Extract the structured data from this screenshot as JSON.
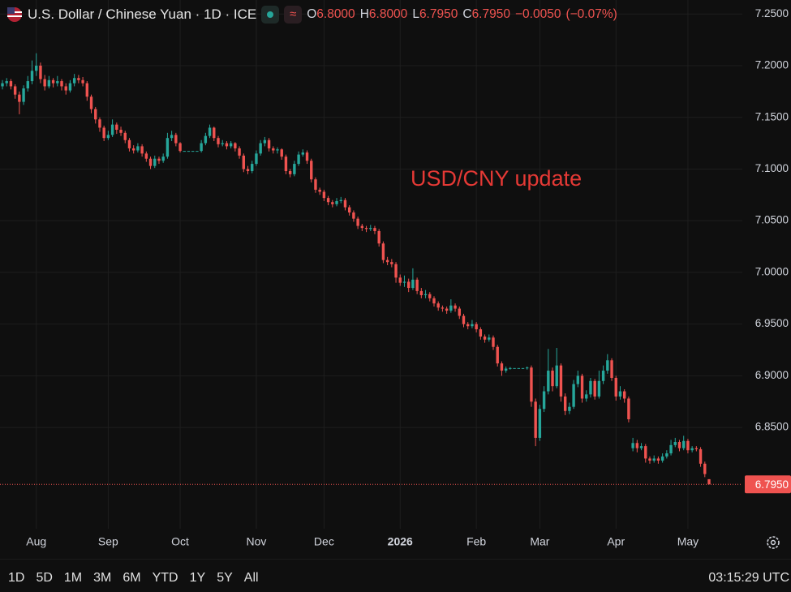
{
  "header": {
    "title": "U.S. Dollar / Chinese Yuan · 1D · ICE",
    "ohlc": [
      {
        "name": "O",
        "value": 6.8,
        "label": "6.8000"
      },
      {
        "name": "H",
        "value": 6.8,
        "label": "6.8000"
      },
      {
        "name": "L",
        "value": 6.795,
        "label": "6.7950"
      },
      {
        "name": "C",
        "value": 6.795,
        "label": "6.7950"
      }
    ],
    "change": {
      "value": -0.005,
      "label": "−0.0050"
    },
    "change_pct": {
      "value": -0.07,
      "label": "(−0.07%)"
    }
  },
  "chart_data": {
    "type": "candlestick",
    "annotation": "USD/CNY update",
    "up_color": "#26a69a",
    "down_color": "#ef5350",
    "grid": true,
    "ylim": [
      6.74,
      7.2635
    ],
    "yticks": [
      {
        "value": 7.25,
        "label": "7.2500"
      },
      {
        "value": 7.2,
        "label": "7.2000"
      },
      {
        "value": 7.15,
        "label": "7.1500"
      },
      {
        "value": 7.1,
        "label": "7.1000"
      },
      {
        "value": 7.05,
        "label": "7.0500"
      },
      {
        "value": 7.0,
        "label": "7.0000"
      },
      {
        "value": 6.95,
        "label": "6.9500"
      },
      {
        "value": 6.9,
        "label": "6.9000"
      },
      {
        "value": 6.85,
        "label": "6.8500"
      }
    ],
    "xticks": [
      {
        "value": 8,
        "label": "Aug"
      },
      {
        "value": 25,
        "label": "Sep"
      },
      {
        "value": 42,
        "label": "Oct"
      },
      {
        "value": 60,
        "label": "Nov"
      },
      {
        "value": 76,
        "label": "Dec"
      },
      {
        "value": 94,
        "label": "2026",
        "bold": true
      },
      {
        "value": 112,
        "label": "Feb"
      },
      {
        "value": 127,
        "label": "Mar"
      },
      {
        "value": 145,
        "label": "Apr"
      },
      {
        "value": 162,
        "label": "May"
      }
    ],
    "last_price": {
      "value": 6.795,
      "label": "6.7950"
    },
    "candles": [
      [
        7.18,
        7.186,
        7.177,
        7.183
      ],
      [
        7.183,
        7.188,
        7.18,
        7.185
      ],
      [
        7.185,
        7.187,
        7.177,
        7.18
      ],
      [
        7.18,
        7.182,
        7.168,
        7.172
      ],
      [
        7.172,
        7.175,
        7.153,
        7.165
      ],
      [
        7.165,
        7.181,
        7.162,
        7.178
      ],
      [
        7.178,
        7.19,
        7.175,
        7.185
      ],
      [
        7.185,
        7.205,
        7.182,
        7.195
      ],
      [
        7.195,
        7.212,
        7.19,
        7.2
      ],
      [
        7.2,
        7.203,
        7.183,
        7.187
      ],
      [
        7.187,
        7.191,
        7.176,
        7.18
      ],
      [
        7.18,
        7.19,
        7.178,
        7.186
      ],
      [
        7.186,
        7.188,
        7.179,
        7.183
      ],
      [
        7.183,
        7.19,
        7.18,
        7.185
      ],
      [
        7.185,
        7.187,
        7.176,
        7.18
      ],
      [
        7.18,
        7.183,
        7.172,
        7.176
      ],
      [
        7.176,
        7.186,
        7.174,
        7.183
      ],
      [
        7.183,
        7.192,
        7.18,
        7.188
      ],
      [
        7.188,
        7.191,
        7.183,
        7.186
      ],
      [
        7.186,
        7.189,
        7.18,
        7.183
      ],
      [
        7.183,
        7.185,
        7.166,
        7.17
      ],
      [
        7.17,
        7.172,
        7.154,
        7.158
      ],
      [
        7.158,
        7.16,
        7.144,
        7.148
      ],
      [
        7.148,
        7.15,
        7.136,
        7.14
      ],
      [
        7.14,
        7.142,
        7.127,
        7.13
      ],
      [
        7.13,
        7.137,
        7.128,
        7.133
      ],
      [
        7.133,
        7.148,
        7.131,
        7.143
      ],
      [
        7.143,
        7.145,
        7.134,
        7.138
      ],
      [
        7.138,
        7.141,
        7.132,
        7.135
      ],
      [
        7.135,
        7.137,
        7.125,
        7.128
      ],
      [
        7.128,
        7.13,
        7.117,
        7.12
      ],
      [
        7.12,
        7.123,
        7.115,
        7.118
      ],
      [
        7.118,
        7.125,
        7.116,
        7.122
      ],
      [
        7.122,
        7.124,
        7.112,
        7.115
      ],
      [
        7.115,
        7.117,
        7.107,
        7.11
      ],
      [
        7.11,
        7.112,
        7.1,
        7.103
      ],
      [
        7.103,
        7.113,
        7.101,
        7.11
      ],
      [
        7.11,
        7.112,
        7.105,
        7.108
      ],
      [
        7.108,
        7.115,
        7.106,
        7.112
      ],
      [
        7.112,
        7.135,
        7.11,
        7.13
      ],
      [
        7.13,
        7.137,
        7.127,
        7.133
      ],
      [
        7.133,
        7.135,
        7.122,
        7.125
      ],
      [
        7.125,
        7.126,
        7.116,
        7.1175
      ],
      [
        7.1175,
        7.1175,
        7.1175,
        7.1175
      ],
      [
        7.1175,
        7.1175,
        7.1175,
        7.1175
      ],
      [
        7.1175,
        7.1175,
        7.1175,
        7.1175
      ],
      [
        7.1175,
        7.1175,
        7.1175,
        7.1175
      ],
      [
        7.1175,
        7.128,
        7.116,
        7.125
      ],
      [
        7.125,
        7.135,
        7.123,
        7.132
      ],
      [
        7.132,
        7.143,
        7.13,
        7.14
      ],
      [
        7.14,
        7.141,
        7.127,
        7.13
      ],
      [
        7.13,
        7.132,
        7.121,
        7.124
      ],
      [
        7.124,
        7.128,
        7.122,
        7.125
      ],
      [
        7.125,
        7.127,
        7.119,
        7.122
      ],
      [
        7.122,
        7.127,
        7.12,
        7.125
      ],
      [
        7.125,
        7.126,
        7.117,
        7.12
      ],
      [
        7.12,
        7.122,
        7.11,
        7.113
      ],
      [
        7.113,
        7.115,
        7.097,
        7.1
      ],
      [
        7.1,
        7.103,
        7.095,
        7.098
      ],
      [
        7.098,
        7.108,
        7.096,
        7.105
      ],
      [
        7.105,
        7.118,
        7.103,
        7.115
      ],
      [
        7.115,
        7.128,
        7.113,
        7.125
      ],
      [
        7.125,
        7.131,
        7.122,
        7.128
      ],
      [
        7.128,
        7.13,
        7.117,
        7.12
      ],
      [
        7.12,
        7.122,
        7.115,
        7.118
      ],
      [
        7.118,
        7.121,
        7.115,
        7.119
      ],
      [
        7.119,
        7.12,
        7.109,
        7.112
      ],
      [
        7.112,
        7.114,
        7.095,
        7.098
      ],
      [
        7.098,
        7.1,
        7.092,
        7.095
      ],
      [
        7.095,
        7.108,
        7.093,
        7.105
      ],
      [
        7.105,
        7.117,
        7.103,
        7.114
      ],
      [
        7.114,
        7.119,
        7.112,
        7.116
      ],
      [
        7.116,
        7.118,
        7.105,
        7.108
      ],
      [
        7.108,
        7.11,
        7.087,
        7.09
      ],
      [
        7.09,
        7.092,
        7.077,
        7.08
      ],
      [
        7.08,
        7.082,
        7.075,
        7.078
      ],
      [
        7.078,
        7.08,
        7.069,
        7.072
      ],
      [
        7.072,
        7.074,
        7.065,
        7.068
      ],
      [
        7.068,
        7.07,
        7.063,
        7.066
      ],
      [
        7.066,
        7.072,
        7.064,
        7.069
      ],
      [
        7.069,
        7.073,
        7.067,
        7.07
      ],
      [
        7.07,
        7.072,
        7.06,
        7.063
      ],
      [
        7.063,
        7.065,
        7.055,
        7.058
      ],
      [
        7.058,
        7.06,
        7.049,
        7.052
      ],
      [
        7.052,
        7.054,
        7.042,
        7.045
      ],
      [
        7.045,
        7.047,
        7.04,
        7.043
      ],
      [
        7.043,
        7.045,
        7.039,
        7.042
      ],
      [
        7.042,
        7.046,
        7.04,
        7.043
      ],
      [
        7.043,
        7.045,
        7.037,
        7.04
      ],
      [
        7.04,
        7.042,
        7.025,
        7.028
      ],
      [
        7.028,
        7.03,
        7.009,
        7.012
      ],
      [
        7.012,
        7.015,
        7.007,
        7.01
      ],
      [
        7.01,
        7.013,
        7.005,
        7.008
      ],
      [
        7.008,
        7.01,
        6.99,
        6.995
      ],
      [
        6.995,
        6.998,
        6.987,
        6.99
      ],
      [
        6.99,
        6.997,
        6.986,
        6.991
      ],
      [
        6.991,
        6.994,
        6.981,
        6.985
      ],
      [
        6.985,
        7.004,
        6.983,
        6.993
      ],
      [
        6.993,
        6.995,
        6.979,
        6.982
      ],
      [
        6.982,
        6.985,
        6.975,
        6.978
      ],
      [
        6.978,
        6.983,
        6.975,
        6.979
      ],
      [
        6.979,
        6.981,
        6.972,
        6.975
      ],
      [
        6.975,
        6.977,
        6.967,
        6.97
      ],
      [
        6.97,
        6.972,
        6.963,
        6.966
      ],
      [
        6.966,
        6.968,
        6.962,
        6.965
      ],
      [
        6.965,
        6.967,
        6.96,
        6.963
      ],
      [
        6.963,
        6.974,
        6.961,
        6.968
      ],
      [
        6.968,
        6.97,
        6.962,
        6.965
      ],
      [
        6.965,
        6.967,
        6.955,
        6.958
      ],
      [
        6.958,
        6.96,
        6.947,
        6.95
      ],
      [
        6.95,
        6.952,
        6.945,
        6.948
      ],
      [
        6.948,
        6.954,
        6.946,
        6.95
      ],
      [
        6.95,
        6.952,
        6.942,
        6.945
      ],
      [
        6.945,
        6.947,
        6.935,
        6.938
      ],
      [
        6.938,
        6.94,
        6.932,
        6.935
      ],
      [
        6.935,
        6.94,
        6.933,
        6.937
      ],
      [
        6.937,
        6.939,
        6.925,
        6.928
      ],
      [
        6.928,
        6.93,
        6.909,
        6.912
      ],
      [
        6.912,
        6.914,
        6.9,
        6.905
      ],
      [
        6.905,
        6.909,
        6.903,
        6.907
      ],
      [
        6.907,
        6.9085,
        6.906,
        6.9075
      ],
      [
        6.9075,
        6.9075,
        6.9075,
        6.9075
      ],
      [
        6.9075,
        6.9075,
        6.9075,
        6.9075
      ],
      [
        6.9075,
        6.9075,
        6.9075,
        6.9075
      ],
      [
        6.9075,
        6.909,
        6.906,
        6.908
      ],
      [
        6.908,
        6.91,
        6.87,
        6.875
      ],
      [
        6.875,
        6.878,
        6.832,
        6.84
      ],
      [
        6.84,
        6.872,
        6.837,
        6.868
      ],
      [
        6.868,
        6.89,
        6.865,
        6.885
      ],
      [
        6.885,
        6.926,
        6.882,
        6.905
      ],
      [
        6.905,
        6.908,
        6.885,
        6.89
      ],
      [
        6.89,
        6.927,
        6.888,
        6.91
      ],
      [
        6.91,
        6.912,
        6.875,
        6.88
      ],
      [
        6.88,
        6.883,
        6.862,
        6.866
      ],
      [
        6.866,
        6.874,
        6.863,
        6.87
      ],
      [
        6.87,
        6.896,
        6.868,
        6.892
      ],
      [
        6.892,
        6.905,
        6.889,
        6.9
      ],
      [
        6.9,
        6.902,
        6.874,
        6.878
      ],
      [
        6.878,
        6.886,
        6.875,
        6.882
      ],
      [
        6.882,
        6.898,
        6.879,
        6.895
      ],
      [
        6.895,
        6.897,
        6.877,
        6.88
      ],
      [
        6.88,
        6.905,
        6.878,
        6.895
      ],
      [
        6.895,
        6.91,
        6.892,
        6.905
      ],
      [
        6.905,
        6.921,
        6.902,
        6.915
      ],
      [
        6.915,
        6.917,
        6.895,
        6.898
      ],
      [
        6.898,
        6.9,
        6.876,
        6.88
      ],
      [
        6.88,
        6.89,
        6.877,
        6.885
      ],
      [
        6.885,
        6.887,
        6.874,
        6.878
      ],
      [
        6.878,
        6.88,
        6.855,
        6.858
      ],
      [
        6.83,
        6.84,
        6.827,
        6.835
      ],
      [
        6.835,
        6.838,
        6.826,
        6.83
      ],
      [
        6.83,
        6.835,
        6.828,
        6.832
      ],
      [
        6.832,
        6.834,
        6.816,
        6.82
      ],
      [
        6.82,
        6.822,
        6.815,
        6.818
      ],
      [
        6.818,
        6.823,
        6.816,
        6.82
      ],
      [
        6.82,
        6.822,
        6.815,
        6.818
      ],
      [
        6.818,
        6.825,
        6.816,
        6.822
      ],
      [
        6.822,
        6.828,
        6.82,
        6.825
      ],
      [
        6.825,
        6.838,
        6.823,
        6.833
      ],
      [
        6.833,
        6.84,
        6.831,
        6.836
      ],
      [
        6.836,
        6.838,
        6.827,
        6.83
      ],
      [
        6.83,
        6.842,
        6.828,
        6.837
      ],
      [
        6.837,
        6.839,
        6.825,
        6.828
      ],
      [
        6.828,
        6.832,
        6.826,
        6.83
      ],
      [
        6.83,
        6.832,
        6.827,
        6.829
      ],
      [
        6.829,
        6.831,
        6.812,
        6.815
      ],
      [
        6.815,
        6.817,
        6.802,
        6.805
      ],
      [
        6.8,
        6.8,
        6.795,
        6.795
      ]
    ]
  },
  "toolbar": {
    "timeframes": [
      "1D",
      "5D",
      "1M",
      "3M",
      "6M",
      "YTD",
      "1Y",
      "5Y",
      "All"
    ],
    "clock": "03:15:29 UTC"
  }
}
